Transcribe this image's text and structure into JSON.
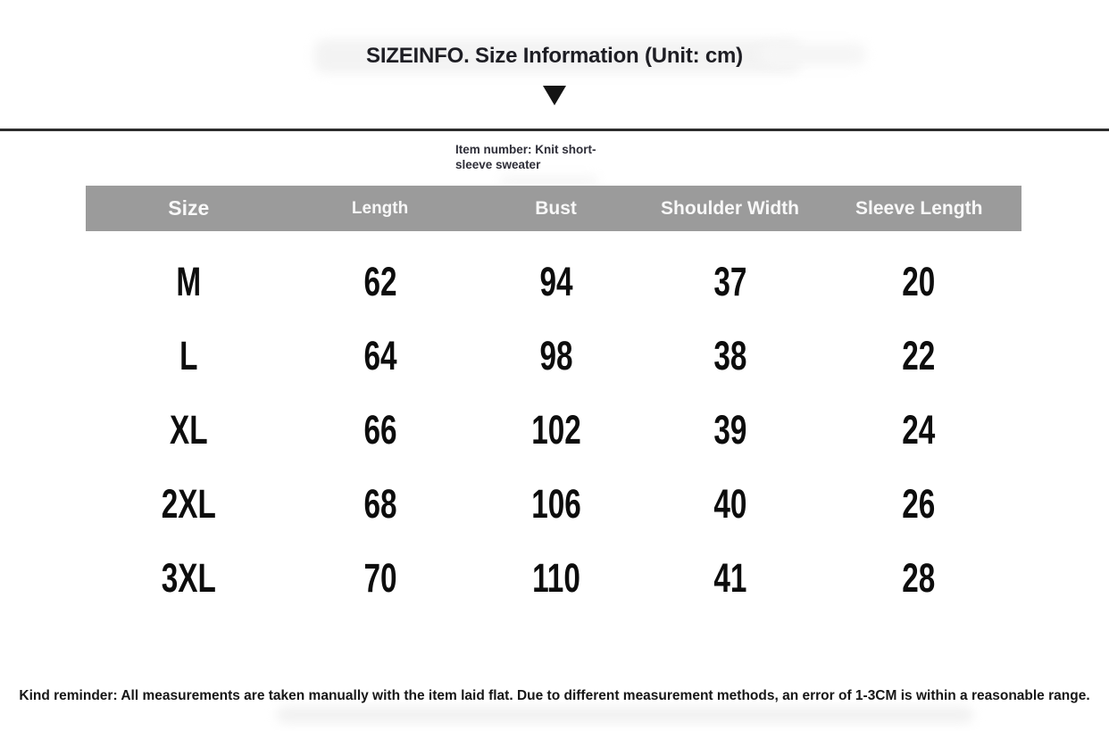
{
  "item_number": {
    "line1": "Item number: Knit short-",
    "line2": "sleeve sweater"
  },
  "chart_data": {
    "type": "table",
    "title": "SIZEINFO. Size Information (Unit: cm)",
    "unit": "cm",
    "columns": [
      "Size",
      "Length",
      "Bust",
      "Shoulder Width",
      "Sleeve Length"
    ],
    "rows": [
      {
        "size": "M",
        "values": [
          "62",
          "94",
          "37",
          "20"
        ]
      },
      {
        "size": "L",
        "values": [
          "64",
          "98",
          "38",
          "22"
        ]
      },
      {
        "size": "XL",
        "values": [
          "66",
          "102",
          "39",
          "24"
        ]
      },
      {
        "size": "2XL",
        "values": [
          "68",
          "106",
          "40",
          "26"
        ]
      },
      {
        "size": "3XL",
        "values": [
          "70",
          "110",
          "41",
          "28"
        ]
      }
    ]
  },
  "footer": {
    "reminder": "Kind reminder: All measurements are taken manually with the item laid flat. Due to different measurement methods, an error of 1-3CM is within a reasonable range."
  },
  "colors": {
    "page_bg": "#ffffff",
    "table_header_bg": "#9b9b9b",
    "table_header_text": "#f8f8f8",
    "table_body_text": "#0d0d0d",
    "title_text": "#1e1e24",
    "divider": "#2d2d2d"
  }
}
